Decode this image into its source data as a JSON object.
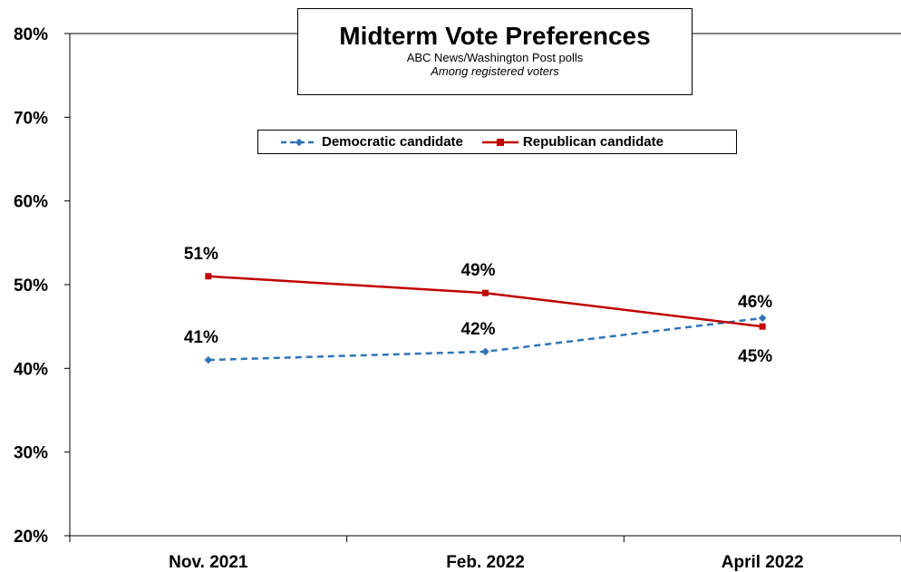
{
  "chart_data": {
    "type": "line",
    "title": "Midterm Vote Preferences",
    "subtitle": "ABC News/Washington  Post polls",
    "subtitle2": "Among registered voters",
    "categories": [
      "Nov. 2021",
      "Feb. 2022",
      "April 2022"
    ],
    "ylim": [
      20,
      80
    ],
    "y_ticks": [
      "20%",
      "30%",
      "40%",
      "50%",
      "60%",
      "70%",
      "80%"
    ],
    "y_tick_values": [
      20,
      30,
      40,
      50,
      60,
      70,
      80
    ],
    "grid": false,
    "legend_position": "top-center",
    "series": [
      {
        "name": "Democratic candidate",
        "values": [
          41,
          42,
          46
        ],
        "labels": [
          "41%",
          "42%",
          "46%"
        ],
        "color": "#2E75B6",
        "dash": "dashed",
        "marker": "diamond"
      },
      {
        "name": "Republican candidate",
        "values": [
          51,
          49,
          45
        ],
        "labels": [
          "51%",
          "49%",
          "45%"
        ],
        "color": "#C00000",
        "dash": "solid",
        "marker": "square"
      }
    ]
  }
}
